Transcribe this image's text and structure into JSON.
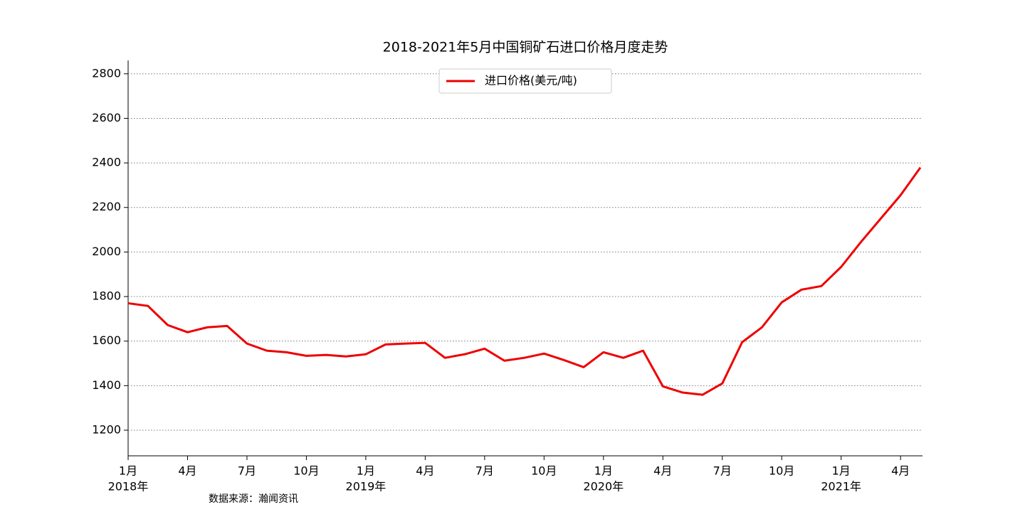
{
  "chart_data": {
    "type": "line",
    "title": "2018-2021年5月中国铜矿石进口价格月度走势",
    "categories": [
      "1月",
      null,
      null,
      "4月",
      null,
      null,
      "7月",
      null,
      null,
      "10月",
      null,
      null,
      "1月",
      null,
      null,
      "4月",
      null,
      null,
      "7月",
      null,
      null,
      "10月",
      null,
      null,
      "1月",
      null,
      null,
      "4月",
      null,
      null,
      "7月",
      null,
      null,
      "10月",
      null,
      null,
      "1月",
      null,
      null,
      "4月",
      null
    ],
    "years": [
      "2018年",
      "2019年",
      "2020年",
      "2021年"
    ],
    "series": [
      {
        "name": "进口价格(美元/吨)",
        "color": "#ee0000",
        "values": [
          1770,
          1758,
          1672,
          1640,
          1662,
          1668,
          1589,
          1557,
          1550,
          1534,
          1538,
          1531,
          1541,
          1585,
          1589,
          1592,
          1525,
          1541,
          1566,
          1512,
          1525,
          1544,
          1515,
          1483,
          1550,
          1525,
          1557,
          1397,
          1369,
          1359,
          1410,
          1595,
          1662,
          1774,
          1831,
          1847,
          1933,
          2045,
          2150,
          2255,
          2379
        ]
      }
    ],
    "ylim": [
      1085,
      2860
    ],
    "yticks": [
      1200,
      1400,
      1600,
      1800,
      2000,
      2200,
      2400,
      2600,
      2800
    ],
    "grid": true,
    "legend": "upper center",
    "source": "数据来源：瀚闻资讯"
  }
}
